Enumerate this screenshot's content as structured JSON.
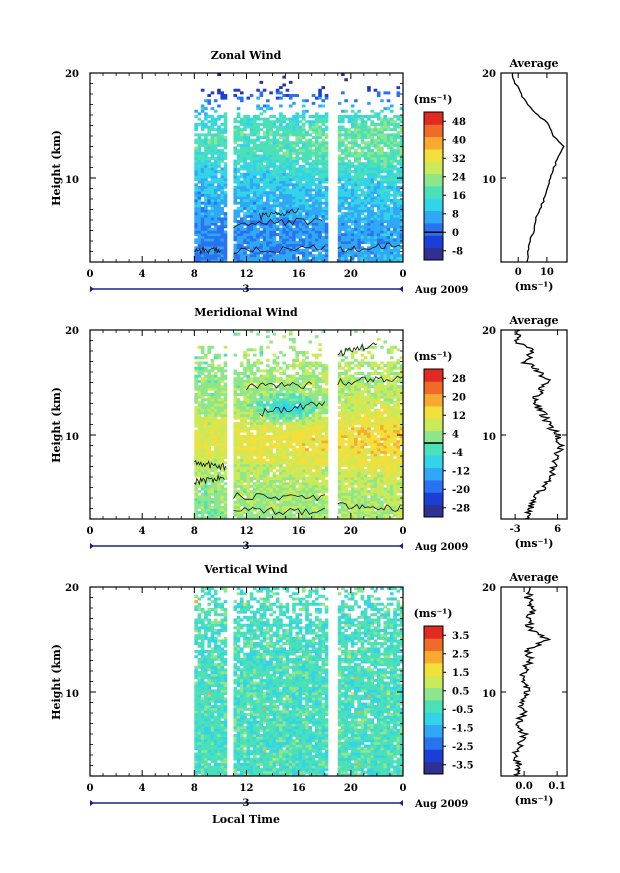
{
  "chart_data": [
    {
      "type": "heatmap",
      "title": "Zonal Wind",
      "ylabel": "Height (km)",
      "ylim": [
        2,
        20
      ],
      "yticks": [
        "10",
        "20"
      ],
      "xlim": [
        0,
        24
      ],
      "xtick_labels": [
        "0",
        "4",
        "8",
        "12",
        "16",
        "20",
        "0"
      ],
      "date_label": "3",
      "date_suffix": "Aug 2009",
      "data_gaps_hours": [
        [
          0,
          8
        ],
        [
          10.4,
          11
        ],
        [
          18.3,
          18.9
        ]
      ],
      "colorbar": {
        "unit_label": "(ms⁻¹)",
        "tick_labels": [
          "48",
          "40",
          "32",
          "24",
          "16",
          "8",
          "0",
          "-8"
        ],
        "range": [
          -12,
          52
        ],
        "zero_line": 0
      },
      "average": {
        "title": "Average",
        "xlabel": "(ms⁻¹)",
        "xtick_labels": [
          "0",
          "10"
        ],
        "xlim": [
          -6,
          17
        ],
        "profile_height_km": [
          2,
          3,
          4,
          5,
          6,
          7,
          8,
          9,
          10,
          11,
          12,
          13,
          14,
          15,
          16,
          17,
          18,
          19,
          20
        ],
        "profile_value": [
          3,
          3.5,
          4,
          5.5,
          6,
          7.5,
          9,
          10,
          11,
          12.5,
          14,
          16,
          12,
          11,
          7,
          3,
          1,
          -1,
          -2
        ]
      }
    },
    {
      "type": "heatmap",
      "title": "Meridional Wind",
      "ylabel": "Height (km)",
      "ylim": [
        2,
        20
      ],
      "yticks": [
        "10",
        "20"
      ],
      "xlim": [
        0,
        24
      ],
      "xtick_labels": [
        "0",
        "4",
        "8",
        "12",
        "16",
        "20",
        "0"
      ],
      "date_label": "3",
      "date_suffix": "Aug 2009",
      "data_gaps_hours": [
        [
          0,
          8
        ],
        [
          10.4,
          11
        ],
        [
          18.3,
          18.9
        ]
      ],
      "colorbar": {
        "unit_label": "(ms⁻¹)",
        "tick_labels": [
          "28",
          "20",
          "12",
          "4",
          "-4",
          "-12",
          "-20",
          "-28"
        ],
        "range": [
          -32,
          32
        ],
        "zero_line": 0
      },
      "average": {
        "title": "Average",
        "xlabel": "(ms⁻¹)",
        "xtick_labels": [
          "-3",
          "6"
        ],
        "xlim": [
          -6,
          8
        ],
        "profile_height_km": [
          2,
          3,
          4,
          5,
          6,
          7,
          8,
          9,
          10,
          11,
          12,
          13,
          14,
          15,
          16,
          17,
          18,
          19,
          20
        ],
        "profile_value": [
          -1,
          0,
          1,
          3,
          4.5,
          5,
          6,
          6.5,
          6,
          4,
          3,
          1,
          2,
          4,
          2,
          -1,
          1,
          -3,
          -2
        ]
      }
    },
    {
      "type": "heatmap",
      "title": "Vertical Wind",
      "ylabel": "Height (km)",
      "xlabel": "Local Time",
      "ylim": [
        2,
        20
      ],
      "yticks": [
        "10",
        "20"
      ],
      "xlim": [
        0,
        24
      ],
      "xtick_labels": [
        "0",
        "4",
        "8",
        "12",
        "16",
        "20",
        "0"
      ],
      "date_label": "3",
      "date_suffix": "Aug 2009",
      "data_gaps_hours": [
        [
          0,
          8
        ],
        [
          10.4,
          11
        ],
        [
          18.3,
          18.9
        ]
      ],
      "colorbar": {
        "unit_label": "(ms⁻¹)",
        "tick_labels": [
          "3.5",
          "2.5",
          "1.5",
          "0.5",
          "-0.5",
          "-1.5",
          "-2.5",
          "-3.5"
        ],
        "range": [
          -4,
          4
        ],
        "zero_line": null
      },
      "average": {
        "title": "Average",
        "xlabel": "(ms⁻¹)",
        "xtick_labels": [
          "0.0",
          "0.1"
        ],
        "xlim": [
          -0.07,
          0.13
        ],
        "profile_height_km": [
          2,
          3,
          4,
          5,
          6,
          7,
          8,
          9,
          10,
          11,
          12,
          13,
          14,
          15,
          16,
          17,
          18,
          19,
          20
        ],
        "profile_value": [
          -0.02,
          -0.01,
          -0.03,
          -0.01,
          0,
          -0.02,
          0,
          -0.01,
          0.01,
          0,
          0,
          0.02,
          0.01,
          0.07,
          0.02,
          0.01,
          0.03,
          0.01,
          0.02
        ]
      }
    }
  ],
  "colors": {
    "colormap": [
      "#2e3192",
      "#1b3fd6",
      "#2a73f0",
      "#2fa8f5",
      "#33d3e8",
      "#4be0b8",
      "#8ee68a",
      "#cbea5a",
      "#f3df3c",
      "#f7a930",
      "#f06a2a",
      "#e02a22"
    ],
    "contour": "#111111",
    "axis": "#000000"
  }
}
